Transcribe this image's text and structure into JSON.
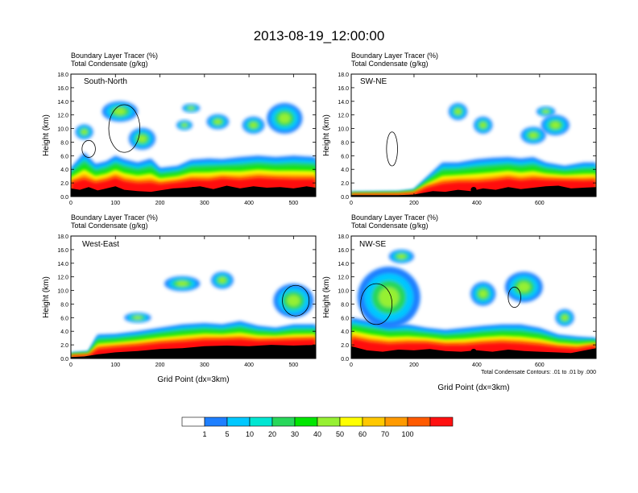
{
  "title": "2013-08-19_12:00:00",
  "panel_header_lines": [
    "Boundary Layer Tracer   (%)",
    "Total Condensate   (g/kg)"
  ],
  "ylabel": "Height (km)",
  "xlabel": "Grid Point (dx=3km)",
  "contour_note": "Total Condensate Contours: .01 to .01 by .000",
  "colorbar": {
    "colors": [
      "#ffffff",
      "#1e7fff",
      "#00c8ff",
      "#00e6d2",
      "#28d75a",
      "#00e600",
      "#96f032",
      "#ffff00",
      "#ffc800",
      "#ff9a00",
      "#ff5a00",
      "#ff1010"
    ],
    "labels": [
      "1",
      "5",
      "10",
      "20",
      "30",
      "40",
      "50",
      "60",
      "70",
      "100"
    ]
  },
  "chart_data": [
    {
      "type": "heatmap",
      "name": "South-North",
      "label": "South-North",
      "xlim": [
        0,
        550
      ],
      "ylim": [
        0,
        18
      ],
      "xticks": [
        0,
        100,
        200,
        300,
        400,
        500
      ],
      "yticks": [
        "0.0",
        "2.0",
        "4.0",
        "6.0",
        "8.0",
        "10.0",
        "12.0",
        "14.0",
        "16.0",
        "18.0"
      ],
      "marker": {
        "x": 275,
        "y": 1.0
      },
      "terrain": [
        [
          0,
          1.2
        ],
        [
          20,
          1.0
        ],
        [
          40,
          1.4
        ],
        [
          60,
          0.9
        ],
        [
          80,
          1.2
        ],
        [
          100,
          1.5
        ],
        [
          120,
          1.0
        ],
        [
          150,
          0.8
        ],
        [
          180,
          0.7
        ],
        [
          200,
          0.9
        ],
        [
          230,
          1.2
        ],
        [
          260,
          1.3
        ],
        [
          290,
          1.5
        ],
        [
          320,
          1.1
        ],
        [
          350,
          1.6
        ],
        [
          380,
          1.2
        ],
        [
          410,
          1.5
        ],
        [
          440,
          1.3
        ],
        [
          470,
          1.4
        ],
        [
          500,
          1.2
        ],
        [
          530,
          1.5
        ],
        [
          550,
          1.3
        ]
      ],
      "boundary_layer_top": [
        [
          0,
          4.2
        ],
        [
          30,
          6.5
        ],
        [
          55,
          4.8
        ],
        [
          80,
          5.2
        ],
        [
          100,
          6.0
        ],
        [
          120,
          5.5
        ],
        [
          150,
          5.0
        ],
        [
          180,
          5.6
        ],
        [
          200,
          4.2
        ],
        [
          240,
          4.5
        ],
        [
          270,
          5.4
        ],
        [
          310,
          5.6
        ],
        [
          340,
          5.5
        ],
        [
          380,
          5.8
        ],
        [
          420,
          6.0
        ],
        [
          460,
          5.8
        ],
        [
          500,
          6.0
        ],
        [
          550,
          5.8
        ]
      ],
      "clouds": [
        {
          "x": 110,
          "y": 12.5,
          "w": 80,
          "h": 3.0
        },
        {
          "x": 30,
          "y": 9.5,
          "w": 40,
          "h": 2.2
        },
        {
          "x": 160,
          "y": 8.5,
          "w": 60,
          "h": 3.2
        },
        {
          "x": 270,
          "y": 13.0,
          "w": 40,
          "h": 1.3
        },
        {
          "x": 255,
          "y": 10.5,
          "w": 36,
          "h": 1.5
        },
        {
          "x": 330,
          "y": 11.0,
          "w": 50,
          "h": 2.2
        },
        {
          "x": 410,
          "y": 10.5,
          "w": 50,
          "h": 2.5
        },
        {
          "x": 480,
          "y": 11.5,
          "w": 80,
          "h": 4.5
        }
      ],
      "contours": [
        {
          "x": 120,
          "y": 10.0,
          "w": 70,
          "h": 7.0
        },
        {
          "x": 40,
          "y": 7.0,
          "w": 30,
          "h": 2.5
        }
      ]
    },
    {
      "type": "heatmap",
      "name": "SW-NE",
      "label": "SW-NE",
      "xlim": [
        0,
        780
      ],
      "ylim": [
        0,
        18
      ],
      "xticks": [
        0,
        200,
        400,
        600
      ],
      "yticks": [
        "0.0",
        "2.0",
        "4.0",
        "6.0",
        "8.0",
        "10.0",
        "12.0",
        "14.0",
        "16.0",
        "18.0"
      ],
      "marker": {
        "x": 390,
        "y": 1.0
      },
      "terrain": [
        [
          0,
          0.2
        ],
        [
          150,
          0.2
        ],
        [
          200,
          0.3
        ],
        [
          260,
          0.8
        ],
        [
          300,
          0.7
        ],
        [
          340,
          1.0
        ],
        [
          380,
          0.8
        ],
        [
          420,
          1.2
        ],
        [
          460,
          1.0
        ],
        [
          500,
          1.4
        ],
        [
          540,
          1.1
        ],
        [
          580,
          1.3
        ],
        [
          620,
          1.5
        ],
        [
          660,
          1.6
        ],
        [
          700,
          1.2
        ],
        [
          740,
          1.3
        ],
        [
          780,
          1.4
        ]
      ],
      "boundary_layer_top": [
        [
          0,
          0.6
        ],
        [
          150,
          0.7
        ],
        [
          200,
          1.0
        ],
        [
          240,
          2.8
        ],
        [
          290,
          5.0
        ],
        [
          340,
          5.0
        ],
        [
          400,
          5.5
        ],
        [
          450,
          5.7
        ],
        [
          500,
          5.8
        ],
        [
          540,
          5.6
        ],
        [
          580,
          5.8
        ],
        [
          620,
          5.0
        ],
        [
          680,
          4.5
        ],
        [
          740,
          5.0
        ],
        [
          780,
          5.0
        ]
      ],
      "clouds": [
        {
          "x": 340,
          "y": 12.5,
          "w": 60,
          "h": 2.5
        },
        {
          "x": 420,
          "y": 10.5,
          "w": 60,
          "h": 2.5
        },
        {
          "x": 620,
          "y": 12.5,
          "w": 60,
          "h": 1.5
        },
        {
          "x": 580,
          "y": 9.0,
          "w": 80,
          "h": 2.5
        },
        {
          "x": 650,
          "y": 10.5,
          "w": 90,
          "h": 3.0
        }
      ],
      "contours": [
        {
          "x": 130,
          "y": 7.0,
          "w": 35,
          "h": 5.0
        }
      ]
    },
    {
      "type": "heatmap",
      "name": "West-East",
      "label": "West-East",
      "xlim": [
        0,
        550
      ],
      "ylim": [
        0,
        18
      ],
      "xticks": [
        0,
        100,
        200,
        300,
        400,
        500
      ],
      "yticks": [
        "0.0",
        "2.0",
        "4.0",
        "6.0",
        "8.0",
        "10.0",
        "12.0",
        "14.0",
        "16.0",
        "18.0"
      ],
      "marker": {
        "x": 275,
        "y": 1.0
      },
      "terrain": [
        [
          0,
          0.2
        ],
        [
          30,
          0.3
        ],
        [
          60,
          0.6
        ],
        [
          100,
          0.9
        ],
        [
          150,
          1.1
        ],
        [
          200,
          1.4
        ],
        [
          250,
          1.5
        ],
        [
          300,
          1.8
        ],
        [
          350,
          1.9
        ],
        [
          400,
          1.8
        ],
        [
          450,
          2.0
        ],
        [
          500,
          1.9
        ],
        [
          550,
          2.0
        ]
      ],
      "boundary_layer_top": [
        [
          0,
          0.8
        ],
        [
          40,
          1.0
        ],
        [
          60,
          3.5
        ],
        [
          100,
          3.6
        ],
        [
          150,
          4.0
        ],
        [
          200,
          4.5
        ],
        [
          250,
          5.0
        ],
        [
          300,
          5.2
        ],
        [
          340,
          5.0
        ],
        [
          380,
          5.5
        ],
        [
          420,
          4.8
        ],
        [
          460,
          4.5
        ],
        [
          500,
          5.0
        ],
        [
          550,
          5.0
        ]
      ],
      "clouds": [
        {
          "x": 250,
          "y": 11.0,
          "w": 80,
          "h": 2.2
        },
        {
          "x": 340,
          "y": 11.5,
          "w": 50,
          "h": 2.5
        },
        {
          "x": 500,
          "y": 8.5,
          "w": 90,
          "h": 5.0
        },
        {
          "x": 150,
          "y": 6.0,
          "w": 60,
          "h": 1.5
        }
      ],
      "contours": [
        {
          "x": 505,
          "y": 8.5,
          "w": 60,
          "h": 4.5
        }
      ]
    },
    {
      "type": "heatmap",
      "name": "NW-SE",
      "label": "NW-SE",
      "xlim": [
        0,
        780
      ],
      "ylim": [
        0,
        18
      ],
      "xticks": [
        0,
        200,
        400,
        600
      ],
      "yticks": [
        "0.0",
        "2.0",
        "4.0",
        "6.0",
        "8.0",
        "10.0",
        "12.0",
        "14.0",
        "16.0",
        "18.0"
      ],
      "marker": {
        "x": 390,
        "y": 1.0
      },
      "terrain": [
        [
          0,
          1.8
        ],
        [
          50,
          1.2
        ],
        [
          100,
          1.0
        ],
        [
          150,
          1.3
        ],
        [
          200,
          1.2
        ],
        [
          250,
          1.4
        ],
        [
          300,
          1.1
        ],
        [
          350,
          1.0
        ],
        [
          400,
          1.2
        ],
        [
          450,
          1.0
        ],
        [
          500,
          1.3
        ],
        [
          550,
          1.1
        ],
        [
          600,
          1.0
        ],
        [
          650,
          0.9
        ],
        [
          700,
          0.8
        ],
        [
          780,
          1.5
        ]
      ],
      "boundary_layer_top": [
        [
          0,
          6.0
        ],
        [
          60,
          5.5
        ],
        [
          120,
          5.0
        ],
        [
          180,
          5.0
        ],
        [
          240,
          4.5
        ],
        [
          300,
          4.2
        ],
        [
          360,
          4.5
        ],
        [
          420,
          4.8
        ],
        [
          480,
          5.0
        ],
        [
          540,
          5.0
        ],
        [
          600,
          4.5
        ],
        [
          660,
          3.5
        ],
        [
          720,
          3.2
        ],
        [
          780,
          3.0
        ]
      ],
      "clouds": [
        {
          "x": 120,
          "y": 9.0,
          "w": 200,
          "h": 9.0
        },
        {
          "x": 160,
          "y": 15.0,
          "w": 80,
          "h": 2.0
        },
        {
          "x": 420,
          "y": 9.5,
          "w": 80,
          "h": 3.5
        },
        {
          "x": 550,
          "y": 10.5,
          "w": 120,
          "h": 4.5
        },
        {
          "x": 680,
          "y": 6.0,
          "w": 60,
          "h": 2.5
        }
      ],
      "contours": [
        {
          "x": 80,
          "y": 8.0,
          "w": 100,
          "h": 6.0
        },
        {
          "x": 520,
          "y": 9.0,
          "w": 40,
          "h": 3.0
        }
      ]
    }
  ]
}
